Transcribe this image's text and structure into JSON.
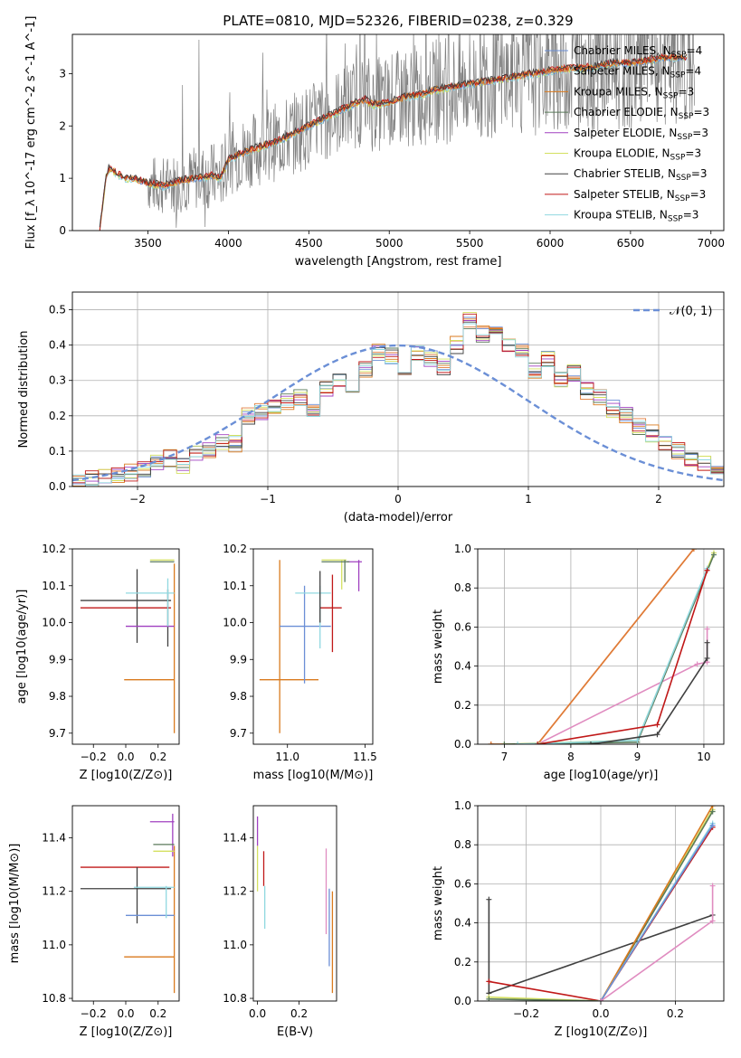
{
  "figure": {
    "title": "PLATE=0810, MJD=52326, FIBERID=0238, z=0.329"
  },
  "colors": {
    "Chabrier MILES": "#6b8fd6",
    "Salpeter MILES": "#e07b39",
    "Kroupa MILES": "#d97a1e",
    "Chabrier ELODIE": "#5a7a5a",
    "Salpeter ELODIE": "#a040c0",
    "Kroupa ELODIE": "#d4e060",
    "Chabrier STELIB": "#404040",
    "Salpeter STELIB": "#c01818",
    "Kroupa STELIB": "#90d8e0",
    "normal": "#6b8fd6",
    "pink": "#e08cc0",
    "data": "#808080"
  },
  "chart_data": [
    {
      "id": "spectrum",
      "type": "line",
      "title": "PLATE=0810, MJD=52326, FIBERID=0238, z=0.329",
      "xlabel": "wavelength [Angstrom, rest frame]",
      "ylabel": "Flux [f_λ 10^-17 erg cm^-2 s^-1 A^-1]",
      "xlim": [
        3030,
        7080
      ],
      "ylim": [
        0,
        3.75
      ],
      "xticks": [
        3500,
        4000,
        4500,
        5000,
        5500,
        6000,
        6500,
        7000
      ],
      "yticks": [
        0,
        1,
        2,
        3
      ],
      "legend_position": "top-right",
      "legend": [
        {
          "name": "Chabrier MILES",
          "nssp": "4"
        },
        {
          "name": "Salpeter MILES",
          "nssp": "4"
        },
        {
          "name": "Kroupa MILES",
          "nssp": "3"
        },
        {
          "name": "Chabrier ELODIE",
          "nssp": "3"
        },
        {
          "name": "Salpeter ELODIE",
          "nssp": "3"
        },
        {
          "name": "Kroupa ELODIE",
          "nssp": "3"
        },
        {
          "name": "Chabrier STELIB",
          "nssp": "3"
        },
        {
          "name": "Salpeter STELIB",
          "nssp": "3"
        },
        {
          "name": "Kroupa STELIB",
          "nssp": "3"
        }
      ],
      "model_curve": {
        "x": [
          3200,
          3240,
          3260,
          3280,
          3300,
          3350,
          3400,
          3450,
          3500,
          3600,
          3700,
          3800,
          3900,
          3950,
          4000,
          4100,
          4200,
          4300,
          4400,
          4500,
          4600,
          4700,
          4800,
          4850,
          4900,
          5000,
          5100,
          5200,
          5300,
          5400,
          5500,
          5600,
          5700,
          5800,
          5900,
          6000,
          6100,
          6200,
          6300,
          6400,
          6500,
          6600,
          6700,
          6800
        ],
        "y": [
          0.0,
          1.05,
          1.2,
          1.15,
          1.1,
          1.0,
          1.0,
          0.95,
          0.9,
          0.85,
          0.95,
          1.0,
          1.05,
          1.0,
          1.35,
          1.5,
          1.6,
          1.7,
          1.85,
          2.0,
          2.15,
          2.3,
          2.45,
          2.5,
          2.4,
          2.45,
          2.55,
          2.6,
          2.7,
          2.75,
          2.8,
          2.85,
          2.9,
          2.95,
          3.0,
          3.05,
          3.1,
          3.1,
          3.15,
          3.2,
          3.2,
          3.25,
          3.3,
          3.3
        ]
      },
      "data_range": [
        3500,
        6900
      ]
    },
    {
      "id": "residuals",
      "type": "line",
      "xlabel": "(data-model)/error",
      "ylabel": "Normed distribution",
      "xlim": [
        -2.5,
        2.5
      ],
      "ylim": [
        0,
        0.55
      ],
      "xticks": [
        -2,
        -1,
        0,
        1,
        2
      ],
      "yticks": [
        0.0,
        0.1,
        0.2,
        0.3,
        0.4,
        0.5
      ],
      "legend_position": "top-right",
      "normal_label": "𝒩(0, 1)",
      "hist_bins": {
        "start": -2.5,
        "width": 0.1,
        "values": [
          0.01,
          0.02,
          0.025,
          0.03,
          0.04,
          0.05,
          0.07,
          0.08,
          0.06,
          0.09,
          0.1,
          0.13,
          0.12,
          0.2,
          0.21,
          0.22,
          0.24,
          0.25,
          0.22,
          0.28,
          0.3,
          0.27,
          0.33,
          0.38,
          0.37,
          0.34,
          0.38,
          0.36,
          0.34,
          0.4,
          0.47,
          0.43,
          0.45,
          0.4,
          0.38,
          0.33,
          0.36,
          0.3,
          0.32,
          0.27,
          0.25,
          0.22,
          0.2,
          0.17,
          0.15,
          0.12,
          0.1,
          0.08,
          0.07,
          0.04
        ]
      }
    },
    {
      "id": "age-vs-Z",
      "type": "scatter",
      "xlabel": "Z [log10(Z/Z⊙)]",
      "ylabel": "age [log10(age/yr)]",
      "xlim": [
        -0.33,
        0.33
      ],
      "ylim": [
        9.67,
        10.2
      ],
      "xticks": [
        -0.2,
        0.0,
        0.2
      ],
      "yticks": [
        9.7,
        9.8,
        9.9,
        10.0,
        10.1,
        10.2
      ],
      "crosses": [
        {
          "model": "Kroupa MILES",
          "x": 0.3,
          "x_lo": -0.01,
          "x_hi": 0.3,
          "y": 9.845,
          "y_lo": 9.7,
          "y_hi": 10.16
        },
        {
          "model": "Salpeter STELIB",
          "x": 0.0,
          "x_lo": -0.28,
          "x_hi": 0.28,
          "y": 10.04,
          "y_lo": 10.04,
          "y_hi": 10.04
        },
        {
          "model": "Chabrier STELIB",
          "x": 0.0,
          "x_lo": -0.28,
          "x_hi": 0.28,
          "y": 10.06,
          "y_lo": 10.06,
          "y_hi": 10.06
        },
        {
          "model": "Chabrier STELIB",
          "x": 0.07,
          "x_lo": 0.07,
          "x_hi": 0.07,
          "y": 10.04,
          "y_lo": 9.945,
          "y_hi": 10.145
        },
        {
          "model": "Chabrier STELIB",
          "x": 0.26,
          "x_lo": 0.26,
          "x_hi": 0.26,
          "y": 10.0,
          "y_lo": 9.935,
          "y_hi": 10.09
        },
        {
          "model": "Salpeter ELODIE",
          "x": 0.2,
          "x_lo": 0.0,
          "x_hi": 0.3,
          "y": 9.99,
          "y_lo": 9.99,
          "y_hi": 9.99
        },
        {
          "model": "Kroupa STELIB",
          "x": 0.2,
          "x_lo": 0.0,
          "x_hi": 0.3,
          "y": 10.08,
          "y_lo": 10.08,
          "y_hi": 10.08
        },
        {
          "model": "Kroupa STELIB",
          "x": 0.26,
          "x_lo": 0.26,
          "x_hi": 0.26,
          "y": 10.05,
          "y_lo": 9.99,
          "y_hi": 10.12
        },
        {
          "model": "Kroupa ELODIE",
          "x": 0.25,
          "x_lo": 0.15,
          "x_hi": 0.3,
          "y": 10.17,
          "y_lo": 10.17,
          "y_hi": 10.17
        },
        {
          "model": "Chabrier ELODIE",
          "x": 0.25,
          "x_lo": 0.15,
          "x_hi": 0.3,
          "y": 10.165,
          "y_lo": 10.165,
          "y_hi": 10.165
        }
      ]
    },
    {
      "id": "age-vs-mass",
      "type": "scatter",
      "xlabel": "mass [log10(M/M⊙)]",
      "ylabel": "",
      "xlim": [
        10.78,
        11.55
      ],
      "ylim": [
        9.67,
        10.2
      ],
      "xticks": [
        11.0,
        11.5
      ],
      "yticks": [
        9.7,
        9.8,
        9.9,
        10.0,
        10.1,
        10.2
      ],
      "crosses": [
        {
          "model": "Kroupa MILES",
          "x": 10.95,
          "x_lo": 10.82,
          "x_hi": 11.2,
          "y": 9.845,
          "y_lo": 9.7,
          "y_hi": 10.17
        },
        {
          "model": "Chabrier MILES",
          "x": 11.11,
          "x_lo": 10.95,
          "x_hi": 11.28,
          "y": 9.99,
          "y_lo": 9.835,
          "y_hi": 10.1
        },
        {
          "model": "Kroupa STELIB",
          "x": 11.21,
          "x_lo": 11.05,
          "x_hi": 11.28,
          "y": 10.08,
          "y_lo": 9.93,
          "y_hi": 10.1
        },
        {
          "model": "Salpeter STELIB",
          "x": 11.29,
          "x_lo": 11.21,
          "x_hi": 11.35,
          "y": 10.04,
          "y_lo": 9.92,
          "y_hi": 10.13
        },
        {
          "model": "Chabrier STELIB",
          "x": 11.21,
          "x_lo": 11.21,
          "x_hi": 11.21,
          "y": 10.06,
          "y_lo": 10.0,
          "y_hi": 10.14
        },
        {
          "model": "Salpeter ELODIE",
          "x": 11.46,
          "x_lo": 11.38,
          "x_hi": 11.48,
          "y": 10.165,
          "y_lo": 10.085,
          "y_hi": 10.17
        },
        {
          "model": "Kroupa ELODIE",
          "x": 11.35,
          "x_lo": 11.22,
          "x_hi": 11.38,
          "y": 10.17,
          "y_lo": 10.09,
          "y_hi": 10.17
        },
        {
          "model": "Chabrier ELODIE",
          "x": 11.37,
          "x_lo": 11.22,
          "x_hi": 11.4,
          "y": 10.165,
          "y_lo": 10.11,
          "y_hi": 10.17
        }
      ]
    },
    {
      "id": "massweight-vs-age",
      "type": "line",
      "xlabel": "age [log10(age/yr)]",
      "ylabel": "mass weight",
      "xlim": [
        6.6,
        10.3
      ],
      "ylim": [
        0,
        1.0
      ],
      "xticks": [
        7,
        8,
        9,
        10
      ],
      "yticks": [
        0.0,
        0.2,
        0.4,
        0.6,
        0.8,
        1.0
      ],
      "series": [
        {
          "model": "Kroupa MILES",
          "x": [
            6.8,
            7.5,
            9.85
          ],
          "y": [
            0.0,
            0.0,
            1.0
          ]
        },
        {
          "model": "Salpeter MILES",
          "x": [
            6.8,
            7.5,
            9.85
          ],
          "y": [
            0.0,
            0.0,
            1.0
          ]
        },
        {
          "model": "pink",
          "x": [
            7.5,
            9.9,
            10.05,
            10.05
          ],
          "y": [
            0.0,
            0.41,
            0.42,
            0.59
          ]
        },
        {
          "model": "Kroupa ELODIE",
          "x": [
            7.0,
            9.0,
            10.15
          ],
          "y": [
            0.0,
            0.02,
            0.98
          ]
        },
        {
          "model": "Chabrier ELODIE",
          "x": [
            7.0,
            9.0,
            10.15
          ],
          "y": [
            0.0,
            0.01,
            0.97
          ]
        },
        {
          "model": "Kroupa STELIB",
          "x": [
            7.2,
            9.0,
            10.05
          ],
          "y": [
            0.0,
            0.02,
            0.9
          ]
        },
        {
          "model": "Salpeter STELIB",
          "x": [
            7.5,
            9.3,
            10.05
          ],
          "y": [
            0.0,
            0.1,
            0.89
          ]
        },
        {
          "model": "Chabrier STELIB",
          "x": [
            8.3,
            9.3,
            10.05,
            10.05
          ],
          "y": [
            0.0,
            0.05,
            0.44,
            0.52
          ]
        }
      ]
    },
    {
      "id": "mass-vs-Z",
      "type": "scatter",
      "xlabel": "Z [log10(Z/Z⊙)]",
      "ylabel": "mass [log10(M/M⊙)]",
      "xlim": [
        -0.33,
        0.33
      ],
      "ylim": [
        10.79,
        11.52
      ],
      "xticks": [
        -0.2,
        0.0,
        0.2
      ],
      "yticks": [
        10.8,
        11.0,
        11.2,
        11.4
      ],
      "crosses": [
        {
          "model": "Kroupa MILES",
          "x": 0.3,
          "x_lo": -0.01,
          "x_hi": 0.3,
          "y": 10.955,
          "y_lo": 10.82,
          "y_hi": 11.37
        },
        {
          "model": "Salpeter STELIB",
          "x": 0.0,
          "x_lo": -0.28,
          "x_hi": 0.27,
          "y": 11.29,
          "y_lo": 11.29,
          "y_hi": 11.29
        },
        {
          "model": "Chabrier STELIB",
          "x": 0.07,
          "x_lo": -0.28,
          "x_hi": 0.28,
          "y": 11.21,
          "y_lo": 11.08,
          "y_hi": 11.29
        },
        {
          "model": "Chabrier MILES",
          "x": 0.1,
          "x_lo": 0.0,
          "x_hi": 0.3,
          "y": 11.11,
          "y_lo": 11.11,
          "y_hi": 11.11
        },
        {
          "model": "Kroupa STELIB",
          "x": 0.25,
          "x_lo": 0.05,
          "x_hi": 0.3,
          "y": 11.215,
          "y_lo": 11.1,
          "y_hi": 11.22
        },
        {
          "model": "Salpeter ELODIE",
          "x": 0.29,
          "x_lo": 0.15,
          "x_hi": 0.3,
          "y": 11.46,
          "y_lo": 11.33,
          "y_hi": 11.49
        },
        {
          "model": "Kroupa ELODIE",
          "x": 0.27,
          "x_lo": 0.17,
          "x_hi": 0.3,
          "y": 11.35,
          "y_lo": 11.35,
          "y_hi": 11.35
        },
        {
          "model": "Chabrier ELODIE",
          "x": 0.27,
          "x_lo": 0.17,
          "x_hi": 0.3,
          "y": 11.375,
          "y_lo": 11.375,
          "y_hi": 11.375
        }
      ]
    },
    {
      "id": "mass-vs-ebv",
      "type": "scatter",
      "xlabel": "E(B-V)",
      "ylabel": "",
      "xlim": [
        -0.02,
        0.38
      ],
      "ylim": [
        10.79,
        11.52
      ],
      "xticks": [
        0.0,
        0.2
      ],
      "yticks": [
        10.8,
        11.0,
        11.2,
        11.4
      ],
      "crosses": [
        {
          "model": "Salpeter ELODIE",
          "x": 0.0,
          "x_lo": 0.0,
          "x_hi": 0.0,
          "y": 11.46,
          "y_lo": 11.37,
          "y_hi": 11.48
        },
        {
          "model": "Kroupa ELODIE",
          "x": 0.0,
          "x_lo": 0.0,
          "x_hi": 0.0,
          "y": 11.3,
          "y_lo": 11.2,
          "y_hi": 11.37
        },
        {
          "model": "Salpeter STELIB",
          "x": 0.03,
          "x_lo": 0.03,
          "x_hi": 0.03,
          "y": 11.29,
          "y_lo": 11.22,
          "y_hi": 11.35
        },
        {
          "model": "Kroupa STELIB",
          "x": 0.035,
          "x_lo": 0.035,
          "x_hi": 0.035,
          "y": 11.2,
          "y_lo": 11.06,
          "y_hi": 11.22
        },
        {
          "model": "pink",
          "x": 0.33,
          "x_lo": 0.33,
          "x_hi": 0.33,
          "y": 11.2,
          "y_lo": 11.04,
          "y_hi": 11.36
        },
        {
          "model": "Chabrier MILES",
          "x": 0.345,
          "x_lo": 0.345,
          "x_hi": 0.345,
          "y": 11.11,
          "y_lo": 10.92,
          "y_hi": 11.21
        },
        {
          "model": "Kroupa MILES",
          "x": 0.36,
          "x_lo": 0.36,
          "x_hi": 0.36,
          "y": 10.95,
          "y_lo": 10.82,
          "y_hi": 11.2
        }
      ]
    },
    {
      "id": "massweight-vs-Z",
      "type": "line",
      "xlabel": "Z [log10(Z/Z⊙)]",
      "ylabel": "mass weight",
      "xlim": [
        -0.33,
        0.33
      ],
      "ylim": [
        0,
        1.0
      ],
      "xticks": [
        -0.2,
        0.0,
        0.2
      ],
      "yticks": [
        0.0,
        0.2,
        0.4,
        0.6,
        0.8,
        1.0
      ],
      "series": [
        {
          "model": "Chabrier STELIB",
          "x": [
            -0.3,
            -0.3,
            0.3
          ],
          "y": [
            0.52,
            0.04,
            0.44
          ]
        },
        {
          "model": "Salpeter STELIB",
          "x": [
            -0.3,
            0.0,
            0.3
          ],
          "y": [
            0.1,
            0.0,
            0.89
          ]
        },
        {
          "model": "Kroupa ELODIE",
          "x": [
            -0.3,
            0.0,
            0.3
          ],
          "y": [
            0.02,
            0.0,
            0.98
          ]
        },
        {
          "model": "Chabrier ELODIE",
          "x": [
            -0.3,
            0.0,
            0.3
          ],
          "y": [
            0.01,
            0.0,
            0.97
          ]
        },
        {
          "model": "Kroupa MILES",
          "x": [
            0.0,
            0.3
          ],
          "y": [
            0.0,
            1.0
          ]
        },
        {
          "model": "Kroupa STELIB",
          "x": [
            0.0,
            0.3
          ],
          "y": [
            0.0,
            0.91
          ]
        },
        {
          "model": "Chabrier MILES",
          "x": [
            0.0,
            0.3
          ],
          "y": [
            0.0,
            0.9
          ]
        },
        {
          "model": "pink",
          "x": [
            0.0,
            0.3,
            0.3
          ],
          "y": [
            0.0,
            0.41,
            0.59
          ]
        }
      ]
    }
  ]
}
